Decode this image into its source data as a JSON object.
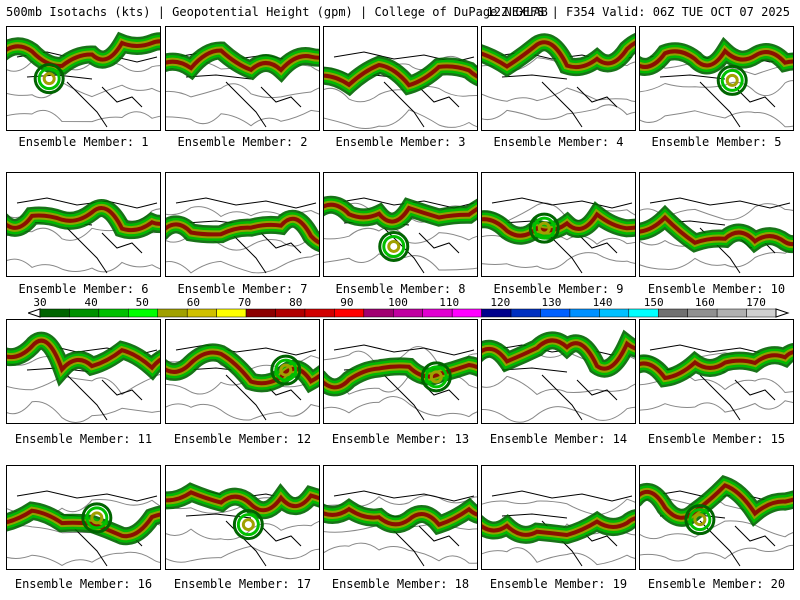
{
  "header": {
    "left": "500mb Isotachs (kts) | Geopotential Height (gpm) | College of DuPage NEXLAB",
    "right": "12Z GEFS | F354 Valid: 06Z TUE OCT 07 2025"
  },
  "members": [
    {
      "label": "Ensemble Member: 1"
    },
    {
      "label": "Ensemble Member: 2"
    },
    {
      "label": "Ensemble Member: 3"
    },
    {
      "label": "Ensemble Member: 4"
    },
    {
      "label": "Ensemble Member: 5"
    },
    {
      "label": "Ensemble Member: 6"
    },
    {
      "label": "Ensemble Member: 7"
    },
    {
      "label": "Ensemble Member: 8"
    },
    {
      "label": "Ensemble Member: 9"
    },
    {
      "label": "Ensemble Member: 10"
    },
    {
      "label": "Ensemble Member: 11"
    },
    {
      "label": "Ensemble Member: 12"
    },
    {
      "label": "Ensemble Member: 13"
    },
    {
      "label": "Ensemble Member: 14"
    },
    {
      "label": "Ensemble Member: 15"
    },
    {
      "label": "Ensemble Member: 16"
    },
    {
      "label": "Ensemble Member: 17"
    },
    {
      "label": "Ensemble Member: 18"
    },
    {
      "label": "Ensemble Member: 19"
    },
    {
      "label": "Ensemble Member: 20"
    }
  ],
  "colorbar": {
    "ticks": [
      "30",
      "40",
      "50",
      "60",
      "70",
      "80",
      "90",
      "100",
      "110",
      "120",
      "130",
      "140",
      "150",
      "160",
      "170"
    ],
    "colors": [
      "#006400",
      "#009100",
      "#00c000",
      "#00ff00",
      "#a0a000",
      "#d0c000",
      "#ffff00",
      "#8b0000",
      "#b00000",
      "#d00000",
      "#ff0000",
      "#a00070",
      "#c000a0",
      "#e000d0",
      "#ff00ff",
      "#00008b",
      "#0030c0",
      "#0060ff",
      "#0090ff",
      "#00c0ff",
      "#00ffff",
      "#707070",
      "#909090",
      "#b0b0b0",
      "#d0d0d0"
    ]
  }
}
